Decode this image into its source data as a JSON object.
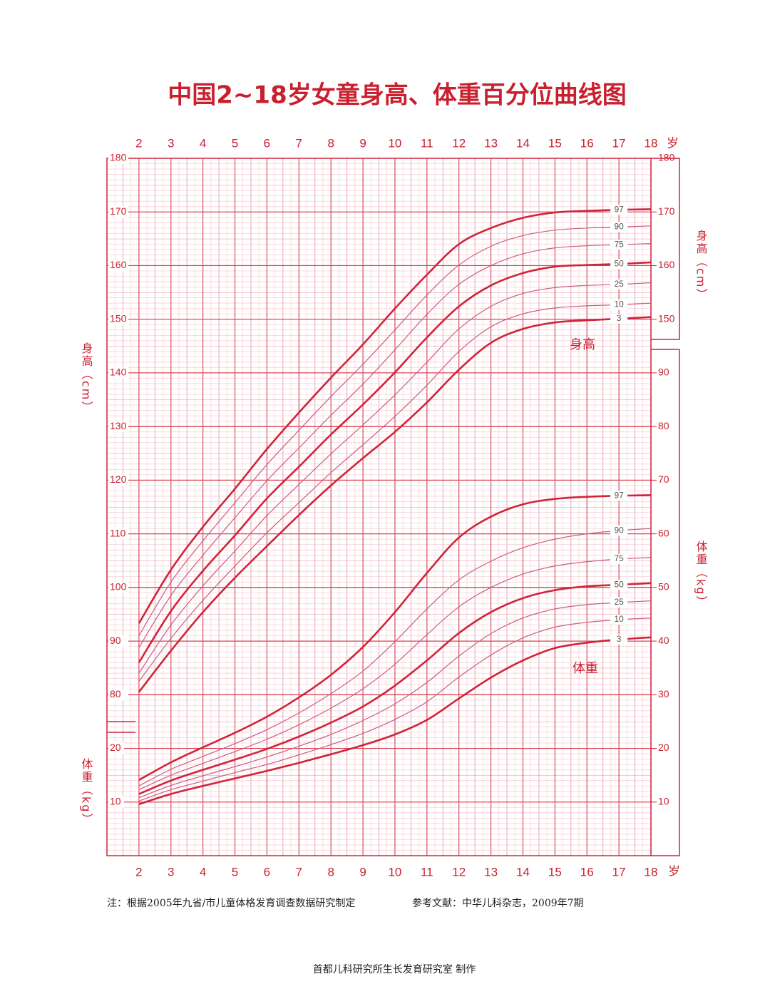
{
  "chart_data": {
    "type": "line",
    "title": "中国2~18岁女童身高、体重百分位曲线图",
    "x_unit": "岁",
    "y_label": "身高（cm）",
    "y2_label": "体重（kg）",
    "annotations": [
      "身高",
      "体重"
    ],
    "grid": true,
    "xlim": [
      1,
      18
    ],
    "xticks": [
      2,
      3,
      4,
      5,
      6,
      7,
      8,
      9,
      10,
      11,
      12,
      13,
      14,
      15,
      16,
      17,
      18
    ],
    "ylim": [
      50,
      180
    ],
    "yticks": [
      80,
      90,
      100,
      110,
      120,
      130,
      140,
      150,
      160,
      170,
      180
    ],
    "y2lim": [
      0,
      130
    ],
    "y2ticks": [
      10,
      20,
      30,
      40,
      50,
      60,
      70,
      80,
      90
    ],
    "x": [
      2,
      3,
      4,
      5,
      6,
      7,
      8,
      9,
      10,
      11,
      12,
      13,
      14,
      15,
      16,
      17,
      18
    ],
    "series": [
      {
        "name": "97",
        "color": "#d0243a",
        "line_width": 2.6,
        "values": [
          93.3,
          103.3,
          111.3,
          118.4,
          125.8,
          132.6,
          139.1,
          145.3,
          152.0,
          158.3,
          164.0,
          167.0,
          168.9,
          169.9,
          170.2,
          170.4,
          170.5
        ]
      },
      {
        "name": "90",
        "color": "#cc5c84",
        "line_width": 1.2,
        "values": [
          91.0,
          101.0,
          108.7,
          115.8,
          122.9,
          129.3,
          135.6,
          141.6,
          148.0,
          154.5,
          160.1,
          163.6,
          165.6,
          166.6,
          167.0,
          167.2,
          167.4
        ]
      },
      {
        "name": "75",
        "color": "#cc5c84",
        "line_width": 1.2,
        "values": [
          88.8,
          98.5,
          106.0,
          113.0,
          119.9,
          126.0,
          132.1,
          137.9,
          144.3,
          150.9,
          156.5,
          160.0,
          162.2,
          163.3,
          163.7,
          163.9,
          164.1
        ]
      },
      {
        "name": "50",
        "color": "#d0243a",
        "line_width": 2.6,
        "values": [
          86.0,
          95.6,
          103.1,
          109.7,
          116.6,
          122.5,
          128.5,
          134.1,
          140.1,
          146.6,
          152.4,
          156.3,
          158.6,
          159.8,
          160.1,
          160.3,
          160.6
        ]
      },
      {
        "name": "25",
        "color": "#cc5c84",
        "line_width": 1.2,
        "values": [
          84.0,
          93.0,
          100.3,
          106.8,
          113.4,
          119.2,
          124.9,
          130.3,
          135.9,
          142.0,
          148.2,
          152.4,
          154.8,
          155.9,
          156.3,
          156.5,
          156.8
        ]
      },
      {
        "name": "10",
        "color": "#cc5c84",
        "line_width": 1.2,
        "values": [
          82.5,
          90.5,
          97.6,
          104.0,
          110.2,
          115.8,
          121.4,
          126.6,
          131.9,
          137.7,
          144.0,
          148.6,
          151.0,
          152.1,
          152.5,
          152.7,
          153.0
        ]
      },
      {
        "name": "3",
        "color": "#d0243a",
        "line_width": 2.6,
        "values": [
          80.5,
          88.2,
          95.4,
          101.8,
          107.7,
          113.5,
          119.0,
          124.1,
          129.0,
          134.5,
          140.6,
          145.6,
          148.2,
          149.4,
          149.8,
          150.1,
          150.4
        ]
      },
      {
        "name": "97",
        "axis": "y2",
        "color": "#d0243a",
        "line_width": 2.6,
        "values": [
          14.1,
          17.4,
          20.2,
          22.9,
          25.9,
          29.5,
          33.7,
          38.9,
          45.4,
          52.7,
          59.3,
          63.2,
          65.5,
          66.5,
          66.9,
          67.1,
          67.2
        ]
      },
      {
        "name": "90",
        "axis": "y2",
        "color": "#cc5c84",
        "line_width": 1.2,
        "values": [
          13.0,
          16.1,
          18.5,
          20.9,
          23.5,
          26.6,
          30.2,
          34.4,
          39.9,
          46.0,
          51.4,
          54.9,
          57.4,
          59.0,
          60.0,
          60.6,
          61.0
        ]
      },
      {
        "name": "75",
        "axis": "y2",
        "color": "#cc5c84",
        "line_width": 1.2,
        "values": [
          12.3,
          15.0,
          17.2,
          19.4,
          21.7,
          24.4,
          27.5,
          31.1,
          35.7,
          41.2,
          46.4,
          50.0,
          52.5,
          54.0,
          54.8,
          55.3,
          55.6
        ]
      },
      {
        "name": "50",
        "axis": "y2",
        "color": "#d0243a",
        "line_width": 2.6,
        "values": [
          11.5,
          14.0,
          16.0,
          17.9,
          19.9,
          22.2,
          24.8,
          27.8,
          31.7,
          36.4,
          41.5,
          45.4,
          48.0,
          49.5,
          50.2,
          50.5,
          50.8
        ]
      },
      {
        "name": "25",
        "axis": "y2",
        "color": "#cc5c84",
        "line_width": 1.2,
        "values": [
          10.8,
          13.1,
          14.9,
          16.6,
          18.4,
          20.4,
          22.6,
          25.2,
          28.3,
          32.3,
          37.2,
          41.4,
          44.3,
          46.0,
          46.8,
          47.2,
          47.5
        ]
      },
      {
        "name": "10",
        "axis": "y2",
        "color": "#cc5c84",
        "line_width": 1.2,
        "values": [
          10.2,
          12.3,
          13.9,
          15.5,
          17.0,
          18.8,
          20.7,
          22.8,
          25.4,
          28.7,
          33.3,
          37.4,
          40.6,
          42.6,
          43.5,
          44.0,
          44.3
        ]
      },
      {
        "name": "3",
        "axis": "y2",
        "color": "#d0243a",
        "line_width": 2.6,
        "values": [
          9.6,
          11.5,
          13.0,
          14.4,
          15.8,
          17.3,
          18.9,
          20.6,
          22.6,
          25.3,
          29.3,
          33.2,
          36.4,
          38.7,
          39.7,
          40.3,
          40.7
        ]
      }
    ]
  },
  "footer": {
    "note": "注：根据2005年九省/市儿童体格发育调查数据研究制定",
    "reference": "参考文献：中华儿科杂志，2009年7期",
    "credit": "首都儿科研究所生长发育研究室  制作"
  }
}
